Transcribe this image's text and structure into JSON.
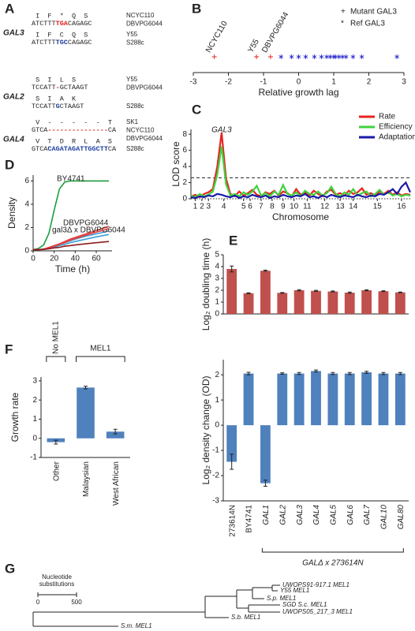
{
  "alignment": {
    "panel": "A",
    "genes": [
      {
        "name": "GAL3",
        "rows": [
          {
            "aa": "I  F  *  Q  S",
            "seq": [
              {
                "text": "ATCTTT"
              },
              {
                "text": "TGA",
                "color": "#e0201c"
              },
              {
                "text": "CAGAGC"
              }
            ],
            "strains": [
              "NCYC110",
              "DBVPG6044"
            ]
          },
          {
            "aa": "I  F  C  Q  S",
            "seq": [
              {
                "text": "ATCTTT"
              },
              {
                "text": "TGC",
                "color": "#1f3fa0"
              },
              {
                "text": "CAGAGC"
              }
            ],
            "strains": [
              "Y55",
              "S288c"
            ]
          }
        ]
      },
      {
        "name": "GAL2",
        "rows": [
          {
            "aa": "S  I  L  S",
            "seq": [
              {
                "text": "TCCATT"
              },
              {
                "text": "-",
                "color": "#e0201c"
              },
              {
                "text": "GCTAAGT"
              }
            ],
            "strains": [
              "Y55",
              "DBVPG6044"
            ]
          },
          {
            "aa": "S  I  A  K",
            "seq": [
              {
                "text": "TCCATT"
              },
              {
                "text": "G",
                "color": "#1f3fa0"
              },
              {
                "text": "CTAAGT"
              }
            ],
            "strains": [
              "S288c"
            ]
          }
        ]
      },
      {
        "name": "GAL4",
        "rows": [
          {
            "aa": "V  -  -  -  -  -  T",
            "seq": [
              {
                "text": "GTCA"
              },
              {
                "text": "---------------",
                "color": "#e0201c"
              },
              {
                "text": "CA"
              }
            ],
            "strains": [
              "SK1",
              "NCYC110",
              "DBVPG6044"
            ]
          },
          {
            "aa": "V  T  D  R  L  A  S",
            "seq": [
              {
                "text": "GTCA"
              },
              {
                "text": "CAGATAGATTGGCTT",
                "color": "#1f3fa0"
              },
              {
                "text": "CA"
              }
            ],
            "strains": [
              "S288c"
            ]
          }
        ]
      }
    ]
  },
  "chart_data": [
    {
      "type": "strip",
      "panel": "B",
      "xlabel": "Relative growth lag",
      "xlim": [
        -3,
        3
      ],
      "xticks": [
        -3,
        -2,
        -1,
        0,
        1,
        2,
        3
      ],
      "series": [
        {
          "name": "Mutant GAL3",
          "marker": "+",
          "color": "#e0201c",
          "values": [
            -2.4,
            -1.2,
            -0.8
          ],
          "labels": [
            "NCYC110",
            "Y55",
            "DBVPG6044"
          ]
        },
        {
          "name": "Ref GAL3",
          "marker": "*",
          "color": "#2b2bd0",
          "values": [
            -0.5,
            -0.2,
            0,
            0.2,
            0.45,
            0.65,
            0.8,
            0.9,
            1.0,
            1.05,
            1.15,
            1.25,
            1.35,
            1.55,
            1.8,
            2.8
          ]
        }
      ]
    },
    {
      "type": "line",
      "panel": "C",
      "ylabel": "LOD score",
      "xlabel": "Chromosome",
      "annotation": "GAL3",
      "threshold": 2.6,
      "xlim": [
        0,
        100
      ],
      "ylim": [
        0,
        8.6
      ],
      "yticks": [
        0,
        2,
        4,
        6,
        8
      ],
      "xticks": [
        {
          "value": 2,
          "label": "1"
        },
        {
          "value": 5,
          "label": "2"
        },
        {
          "value": 8,
          "label": "3"
        },
        {
          "value": 15,
          "label": "4"
        },
        {
          "value": 24,
          "label": "5"
        },
        {
          "value": 27,
          "label": "6"
        },
        {
          "value": 32,
          "label": "7"
        },
        {
          "value": 37,
          "label": "8"
        },
        {
          "value": 42,
          "label": "9"
        },
        {
          "value": 47,
          "label": "10"
        },
        {
          "value": 53,
          "label": "11"
        },
        {
          "value": 61,
          "label": "12"
        },
        {
          "value": 68,
          "label": "13"
        },
        {
          "value": 74,
          "label": "14"
        },
        {
          "value": 85,
          "label": "15"
        },
        {
          "value": 96,
          "label": "16"
        }
      ],
      "legend": "upper right",
      "x": [
        0,
        2,
        4,
        6,
        8,
        10,
        12,
        14,
        16,
        18,
        20,
        22,
        24,
        26,
        28,
        30,
        32,
        34,
        36,
        38,
        40,
        42,
        44,
        46,
        48,
        50,
        52,
        54,
        56,
        58,
        60,
        62,
        64,
        66,
        68,
        70,
        72,
        74,
        76,
        78,
        80,
        82,
        84,
        86,
        88,
        90,
        92,
        94,
        96,
        98,
        100
      ],
      "series": [
        {
          "name": "Rate",
          "color": "#e8231f",
          "values": [
            0.3,
            0.5,
            0.2,
            0.6,
            0.8,
            1.2,
            4.0,
            8.2,
            2.5,
            0.6,
            0.3,
            0.9,
            0.4,
            0.7,
            1.1,
            0.5,
            0.3,
            0.8,
            0.6,
            1.0,
            0.4,
            0.9,
            0.7,
            0.3,
            1.2,
            0.5,
            0.8,
            0.4,
            1.0,
            0.6,
            0.3,
            0.9,
            1.1,
            0.5,
            0.7,
            0.4,
            1.0,
            0.6,
            0.8,
            1.3,
            0.5,
            0.7,
            0.4,
            0.9,
            0.6,
            1.0,
            0.5,
            0.8,
            0.4,
            0.6,
            0.5
          ]
        },
        {
          "name": "Efficiency",
          "color": "#3fd23f",
          "values": [
            0.4,
            0.2,
            0.6,
            0.3,
            0.5,
            0.9,
            3.0,
            6.5,
            1.8,
            0.4,
            0.6,
            0.3,
            0.8,
            0.5,
            0.9,
            1.6,
            0.4,
            0.7,
            0.3,
            0.9,
            0.5,
            1.7,
            0.6,
            0.4,
            0.8,
            0.3,
            1.0,
            0.6,
            0.5,
            0.9,
            0.4,
            0.7,
            1.5,
            0.6,
            0.3,
            0.8,
            0.5,
            1.2,
            0.4,
            0.7,
            0.9,
            0.3,
            0.6,
            1.1,
            0.5,
            0.8,
            0.4,
            0.6,
            0.3,
            0.5,
            0.4
          ]
        },
        {
          "name": "Adaptation",
          "color": "#1a1aa8",
          "values": [
            0.2,
            0.1,
            0.3,
            0.2,
            0.4,
            0.3,
            0.6,
            0.5,
            0.3,
            0.2,
            0.4,
            0.1,
            0.3,
            0.2,
            0.5,
            0.3,
            0.2,
            0.4,
            0.1,
            0.3,
            0.2,
            0.5,
            0.3,
            0.2,
            0.4,
            0.3,
            0.6,
            0.2,
            0.3,
            0.1,
            0.4,
            0.2,
            0.5,
            0.3,
            0.2,
            0.4,
            0.3,
            0.2,
            0.5,
            0.3,
            0.2,
            0.4,
            0.3,
            0.6,
            0.5,
            0.8,
            1.2,
            0.6,
            1.5,
            2.0,
            0.8
          ]
        }
      ]
    },
    {
      "type": "line",
      "panel": "D",
      "ylabel": "Density",
      "xlabel": "Time (h)",
      "xlim": [
        0,
        75
      ],
      "xticks": [
        0,
        20,
        40,
        60
      ],
      "ylim": [
        0,
        6.5
      ],
      "yticks": [
        0,
        2,
        4,
        6
      ],
      "x": [
        0,
        5,
        10,
        15,
        20,
        25,
        30,
        35,
        40,
        50,
        60,
        72
      ],
      "series": [
        {
          "name": "BY4741",
          "color": "#1a9e3a",
          "values": [
            0.1,
            0.2,
            0.5,
            1.5,
            3.5,
            5.3,
            5.9,
            6,
            6,
            6,
            6,
            6
          ]
        },
        {
          "name": "DBVPG6044",
          "color": "#3aa0d8",
          "values": [
            0.1,
            0.1,
            0.15,
            0.25,
            0.4,
            0.55,
            0.7,
            0.85,
            1.0,
            1.25,
            1.45,
            1.7
          ]
        },
        {
          "color": "#3aa0d8",
          "values": [
            0.1,
            0.1,
            0.12,
            0.2,
            0.3,
            0.45,
            0.55,
            0.7,
            0.8,
            1.0,
            1.2,
            1.4
          ]
        },
        {
          "name": "gal3Δ x DBVPG6044",
          "color": "#e04040",
          "values": [
            0.1,
            0.1,
            0.15,
            0.3,
            0.45,
            0.6,
            0.8,
            1.0,
            1.15,
            1.45,
            1.75,
            2.1
          ]
        },
        {
          "color": "#e04040",
          "values": [
            0.1,
            0.1,
            0.15,
            0.25,
            0.4,
            0.55,
            0.7,
            0.9,
            1.05,
            1.35,
            1.6,
            1.9
          ]
        },
        {
          "color": "#8e1b1b",
          "values": [
            0.1,
            0.1,
            0.12,
            0.18,
            0.25,
            0.3,
            0.4,
            0.45,
            0.5,
            0.6,
            0.7,
            0.8
          ]
        }
      ]
    },
    {
      "type": "bar",
      "panel": "E",
      "ylabel": "Log₂ doubling time (h)",
      "ylim": [
        0,
        5
      ],
      "yticks": [
        0,
        1,
        2,
        3,
        4,
        5
      ],
      "color": "#c0504d",
      "values": [
        3.8,
        1.75,
        3.65,
        1.78,
        2.0,
        1.95,
        1.9,
        1.8,
        2.0,
        1.92,
        1.82
      ],
      "errors": [
        0.25,
        0.03,
        0.05,
        0.03,
        0.05,
        0.04,
        0.04,
        0.05,
        0.04,
        0.04,
        0.03
      ]
    },
    {
      "type": "bar",
      "ylabel": "Log₂ density change (OD)",
      "ylim": [
        -3,
        2.6
      ],
      "yticks": [
        -3,
        -2,
        -1,
        0,
        1,
        2
      ],
      "color": "#4f81bd",
      "categories": [
        "273614N",
        "BY4741",
        "GAL1",
        "GAL2",
        "GAL3",
        "GAL4",
        "GAL5",
        "GAL6",
        "GAL7",
        "GAL10",
        "GAL80"
      ],
      "values": [
        -1.45,
        2.05,
        -2.3,
        2.05,
        2.05,
        2.15,
        2.05,
        2.05,
        2.1,
        2.05,
        2.05
      ],
      "errors": [
        0.3,
        0.05,
        0.12,
        0.03,
        0.04,
        0.04,
        0.04,
        0.04,
        0.04,
        0.04,
        0.04
      ],
      "group_label": "GALΔ x 273614N"
    },
    {
      "type": "bar",
      "panel": "F",
      "ylabel": "Growth rate",
      "ylim": [
        -1,
        3.2
      ],
      "yticks": [
        -1,
        0,
        1,
        2,
        3
      ],
      "color": "#4f81bd",
      "categories": [
        "Other",
        "Malaysian",
        "West African"
      ],
      "values": [
        -0.2,
        2.65,
        0.35
      ],
      "errors": [
        0.1,
        0.07,
        0.12
      ],
      "groups": [
        "No MEL1",
        "MEL1"
      ]
    }
  ],
  "tree": {
    "panel": "G",
    "scale_label": [
      "Nucleotide",
      "substitutions"
    ],
    "scale_ticks": [
      "0",
      "500"
    ],
    "leaves": [
      {
        "label": "UWOPS91-917.1 MEL1",
        "color": "#2e9b2e"
      },
      {
        "label": "Y55 MEL1",
        "color": "#8b3a8b"
      },
      {
        "label": "S.p. MEL1",
        "color": "#2e9b2e"
      },
      {
        "label": "SGD S.c. MEL1",
        "color": "#8b3a8b"
      },
      {
        "label": "UWOPS05_217_3 MEL1",
        "color": "#8b3a8b"
      },
      {
        "label": "S.b. MEL1",
        "color": "#2a9fd6"
      },
      {
        "label": "S.m. MEL1",
        "color": "#d03030"
      }
    ]
  }
}
